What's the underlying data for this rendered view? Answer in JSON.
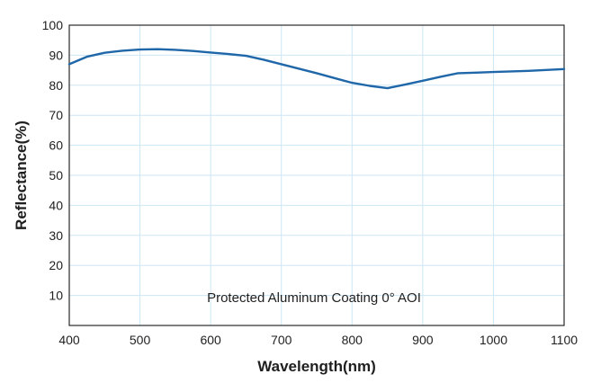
{
  "chart_data": {
    "type": "line",
    "xlabel": "Wavelength(nm)",
    "ylabel": "Reflectance(%)",
    "annotation": "Protected Aluminum Coating  0°  AOI",
    "xlim": [
      400,
      1100
    ],
    "ylim": [
      0,
      100
    ],
    "xticks": [
      400,
      500,
      600,
      700,
      800,
      900,
      1000,
      1100
    ],
    "yticks": [
      10,
      20,
      30,
      40,
      50,
      60,
      70,
      80,
      90,
      100
    ],
    "grid": true,
    "series": [
      {
        "color": "#1f67a8",
        "x": [
          400,
          425,
          450,
          475,
          500,
          525,
          550,
          575,
          600,
          625,
          650,
          675,
          700,
          725,
          750,
          775,
          800,
          825,
          850,
          875,
          900,
          925,
          950,
          975,
          1000,
          1025,
          1050,
          1075,
          1100
        ],
        "y": [
          87,
          89.5,
          90.8,
          91.5,
          91.9,
          92,
          91.8,
          91.4,
          90.9,
          90.4,
          89.8,
          88.5,
          87,
          85.5,
          84,
          82.4,
          80.8,
          79.8,
          79,
          80.2,
          81.5,
          82.8,
          84,
          84.2,
          84.4,
          84.6,
          84.8,
          85.1,
          85.4
        ]
      }
    ]
  }
}
